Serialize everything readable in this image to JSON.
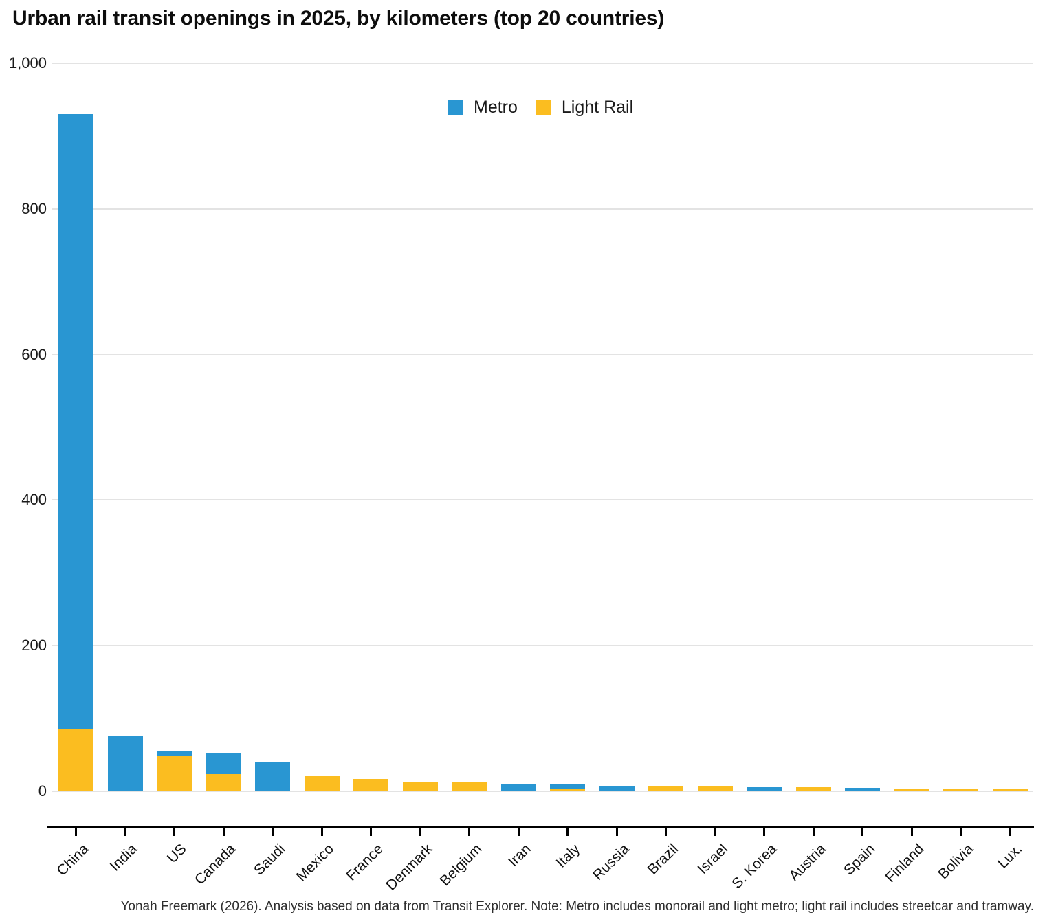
{
  "title": "Urban rail transit openings in 2025, by kilometers (top 20 countries)",
  "legend": {
    "metro_label": "Metro",
    "light_rail_label": "Light Rail"
  },
  "footer": "Yonah Freemark (2026). Analysis based on data from Transit Explorer. Note: Metro includes monorail and light metro; light rail includes streetcar and tramway.",
  "colors": {
    "metro": "#2996D2",
    "light_rail": "#FBBD20",
    "gridline": "#e3e3e3",
    "axis": "#000000"
  },
  "chart_data": {
    "type": "bar",
    "stacked": true,
    "title": "Urban rail transit openings in 2025, by kilometers (top 20 countries)",
    "xlabel": "",
    "ylabel": "",
    "ylim": [
      0,
      1000
    ],
    "grid": "horizontal",
    "legend_position": "top-center",
    "y_tick_values": [
      0,
      200,
      400,
      600,
      800,
      1000
    ],
    "y_tick_labels": [
      "0",
      "200",
      "400",
      "600",
      "800",
      "1,000"
    ],
    "categories": [
      "China",
      "India",
      "US",
      "Canada",
      "Saudi",
      "Mexico",
      "France",
      "Denmark",
      "Belgium",
      "Iran",
      "Italy",
      "Russia",
      "Brazil",
      "Israel",
      "S. Korea",
      "Austria",
      "Spain",
      "Finland",
      "Bolivia",
      "Lux."
    ],
    "series": [
      {
        "name": "Metro",
        "color": "#2996D2",
        "values": [
          845,
          76,
          8,
          29,
          40,
          0,
          0,
          0,
          0,
          10,
          6,
          8,
          0,
          0,
          6,
          0,
          5,
          0,
          0,
          0
        ]
      },
      {
        "name": "Light Rail",
        "color": "#FBBD20",
        "values": [
          85,
          0,
          48,
          24,
          0,
          21,
          17,
          13,
          13,
          0,
          4,
          0,
          7,
          6.5,
          0,
          5.5,
          0,
          4,
          3.5,
          3.5
        ]
      }
    ],
    "totals": [
      930,
      76,
      56,
      53,
      40,
      21,
      17,
      13,
      13,
      10,
      10,
      8,
      7,
      6.5,
      6,
      5.5,
      5,
      4,
      3.5,
      3.5
    ]
  }
}
